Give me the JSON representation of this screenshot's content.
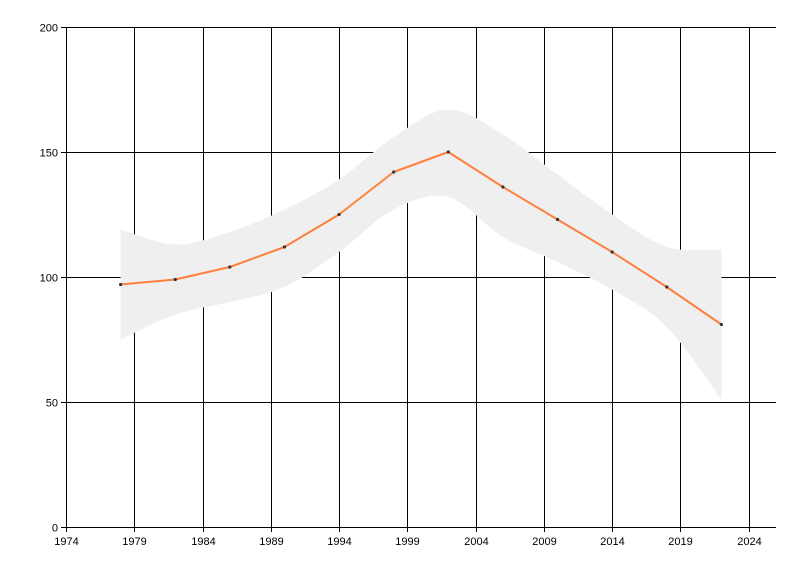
{
  "chart_data": {
    "type": "line",
    "title": "",
    "xlabel": "",
    "ylabel": "",
    "xlim": [
      1974,
      2026
    ],
    "ylim": [
      0,
      200
    ],
    "x_ticks": [
      1974,
      1979,
      1984,
      1989,
      1994,
      1999,
      2004,
      2009,
      2014,
      2019,
      2024
    ],
    "y_ticks": [
      0,
      50,
      100,
      150,
      200
    ],
    "x_tick_labels": [
      "1974",
      "1979",
      "1984",
      "1989",
      "1994",
      "1999",
      "2004",
      "2009",
      "2014",
      "2019",
      "2024"
    ],
    "y_tick_labels": [
      "0",
      "50",
      "100",
      "150",
      "200"
    ],
    "grid": true,
    "legend": "none",
    "series": [
      {
        "x": [
          1978,
          1982,
          1986,
          1990,
          1994,
          1998,
          2002,
          2006,
          2010,
          2014,
          2018,
          2022
        ],
        "values": [
          97,
          99,
          104,
          112,
          125,
          142,
          150,
          136,
          123,
          110,
          96,
          81
        ],
        "color": "#ff7f3f",
        "marker_color": "#333333"
      }
    ],
    "band": {
      "x": [
        1978,
        1982,
        1986,
        1990,
        1994,
        1998,
        2002,
        2006,
        2010,
        2014,
        2018,
        2022
      ],
      "upper": [
        119,
        113,
        118,
        127,
        139,
        156,
        167,
        157,
        141,
        125,
        112,
        111
      ],
      "lower": [
        75,
        85,
        90,
        96,
        110,
        127,
        132,
        116,
        106,
        95,
        80,
        51
      ],
      "color": "#efefef"
    }
  }
}
